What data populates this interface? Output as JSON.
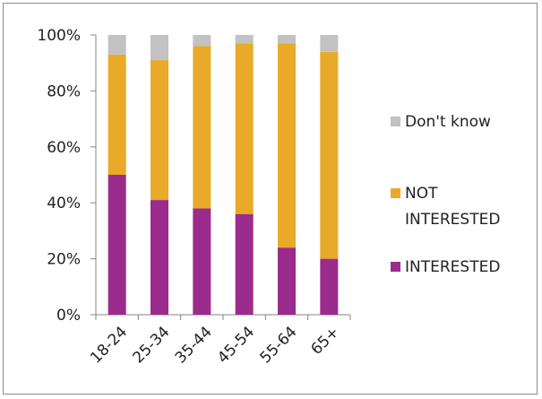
{
  "chart_data": {
    "type": "bar",
    "stacked": true,
    "categories": [
      "18-24",
      "25-34",
      "35-44",
      "45-54",
      "55-64",
      "65+"
    ],
    "series": [
      {
        "name": "INTERESTED",
        "color": "#9b2b8c",
        "values": [
          50,
          41,
          38,
          36,
          24,
          20
        ]
      },
      {
        "name": "NOT INTERESTED",
        "name_lines": [
          "NOT",
          "INTERESTED"
        ],
        "color": "#e8aa28",
        "values": [
          43,
          50,
          58,
          61,
          73,
          74
        ]
      },
      {
        "name": "Don't know",
        "color": "#c2c2c2",
        "values": [
          7,
          9,
          4,
          3,
          3,
          6
        ]
      }
    ],
    "y_ticks": [
      "0%",
      "20%",
      "40%",
      "60%",
      "80%",
      "100%"
    ],
    "ylim": [
      0,
      100
    ],
    "grid": false,
    "legend_position": "right"
  }
}
